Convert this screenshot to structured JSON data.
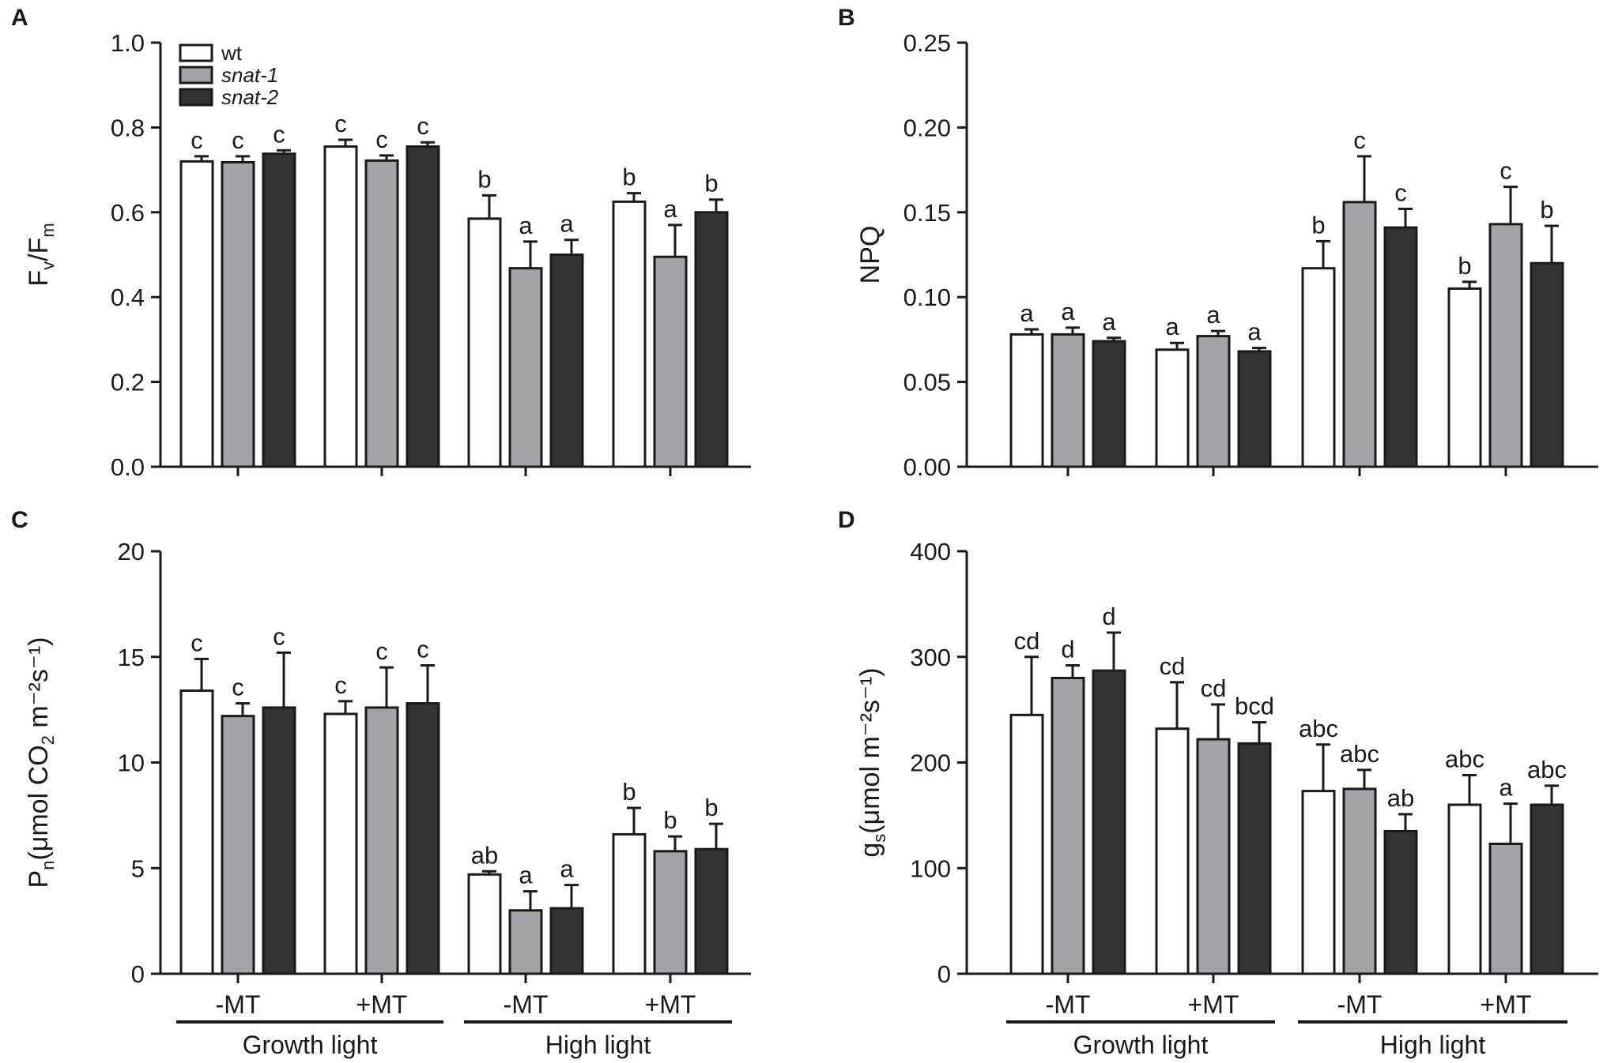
{
  "legend": {
    "series": [
      {
        "name": "wt",
        "italic": false,
        "color": "#ffffff"
      },
      {
        "name": "snat-1",
        "italic": true,
        "color": "#a3a3a6"
      },
      {
        "name": "snat-2",
        "italic": true,
        "color": "#333333"
      }
    ]
  },
  "chart_data": [
    {
      "panel": "A",
      "type": "bar",
      "ylabel": {
        "main": "F",
        "sub1": "v",
        "mid": "/F",
        "sub2": "m",
        "rest": ""
      },
      "ylim": [
        0,
        1.0
      ],
      "yticks": [
        "0.0",
        "0.2",
        "0.4",
        "0.6",
        "0.8",
        "1.0"
      ],
      "ytick_values": [
        0,
        0.2,
        0.4,
        0.6,
        0.8,
        1.0
      ],
      "categories": [
        "-MT",
        "+MT",
        "-MT",
        "+MT"
      ],
      "show_categories": false,
      "groups": [],
      "series": [
        {
          "name": "wt",
          "values": [
            0.72,
            0.755,
            0.585,
            0.625
          ],
          "errors": [
            0.012,
            0.016,
            0.055,
            0.02
          ],
          "labels": [
            "c",
            "c",
            "b",
            "b"
          ]
        },
        {
          "name": "snat-1",
          "values": [
            0.718,
            0.722,
            0.468,
            0.495
          ],
          "errors": [
            0.014,
            0.012,
            0.063,
            0.075
          ],
          "labels": [
            "c",
            "c",
            "a",
            "a"
          ]
        },
        {
          "name": "snat-2",
          "values": [
            0.738,
            0.755,
            0.5,
            0.6
          ],
          "errors": [
            0.008,
            0.01,
            0.035,
            0.03
          ],
          "labels": [
            "c",
            "c",
            "a",
            "b"
          ]
        }
      ]
    },
    {
      "panel": "B",
      "type": "bar",
      "ylabel": {
        "main": "NPQ",
        "sub1": "",
        "mid": "",
        "sub2": "",
        "rest": ""
      },
      "ylim": [
        0,
        0.25
      ],
      "yticks": [
        "0.00",
        "0.05",
        "0.10",
        "0.15",
        "0.20",
        "0.25"
      ],
      "ytick_values": [
        0,
        0.05,
        0.1,
        0.15,
        0.2,
        0.25
      ],
      "categories": [
        "-MT",
        "+MT",
        "-MT",
        "+MT"
      ],
      "show_categories": false,
      "groups": [],
      "series": [
        {
          "name": "wt",
          "values": [
            0.078,
            0.069,
            0.117,
            0.105
          ],
          "errors": [
            0.003,
            0.004,
            0.016,
            0.004
          ],
          "labels": [
            "a",
            "a",
            "b",
            "b"
          ]
        },
        {
          "name": "snat-1",
          "values": [
            0.078,
            0.077,
            0.156,
            0.143
          ],
          "errors": [
            0.004,
            0.003,
            0.027,
            0.022
          ],
          "labels": [
            "a",
            "a",
            "c",
            "c"
          ]
        },
        {
          "name": "snat-2",
          "values": [
            0.074,
            0.068,
            0.141,
            0.12
          ],
          "errors": [
            0.002,
            0.002,
            0.011,
            0.022
          ],
          "labels": [
            "a",
            "a",
            "c",
            "b"
          ]
        }
      ]
    },
    {
      "panel": "C",
      "type": "bar",
      "ylabel": {
        "main": "P",
        "sub1": "n",
        "mid": "(μmol CO",
        "sub2": "2",
        "rest": " m⁻²s⁻¹)"
      },
      "ylim": [
        0,
        20
      ],
      "yticks": [
        "0",
        "5",
        "10",
        "15",
        "20"
      ],
      "ytick_values": [
        0,
        5,
        10,
        15,
        20
      ],
      "categories": [
        "-MT",
        "+MT",
        "-MT",
        "+MT"
      ],
      "show_categories": true,
      "groups": [
        {
          "label": "Growth light",
          "cats": [
            0,
            1
          ]
        },
        {
          "label": "High light",
          "cats": [
            2,
            3
          ]
        }
      ],
      "series": [
        {
          "name": "wt",
          "values": [
            13.4,
            12.3,
            4.7,
            6.6
          ],
          "errors": [
            1.5,
            0.6,
            0.15,
            1.25
          ],
          "labels": [
            "c",
            "c",
            "ab",
            "b"
          ]
        },
        {
          "name": "snat-1",
          "values": [
            12.2,
            12.6,
            3.0,
            5.8
          ],
          "errors": [
            0.6,
            1.9,
            0.9,
            0.7
          ],
          "labels": [
            "c",
            "c",
            "a",
            "b"
          ]
        },
        {
          "name": "snat-2",
          "values": [
            12.6,
            12.8,
            3.1,
            5.9
          ],
          "errors": [
            2.6,
            1.8,
            1.1,
            1.2
          ],
          "labels": [
            "c",
            "c",
            "a",
            "b"
          ]
        }
      ]
    },
    {
      "panel": "D",
      "type": "bar",
      "ylabel": {
        "main": "g",
        "sub1": "s",
        "mid": "(μmol m⁻²s⁻¹)",
        "sub2": "",
        "rest": ""
      },
      "ylim": [
        0,
        400
      ],
      "yticks": [
        "0",
        "100",
        "200",
        "300",
        "400"
      ],
      "ytick_values": [
        0,
        100,
        200,
        300,
        400
      ],
      "categories": [
        "-MT",
        "+MT",
        "-MT",
        "+MT"
      ],
      "show_categories": true,
      "groups": [
        {
          "label": "Growth light",
          "cats": [
            0,
            1
          ]
        },
        {
          "label": "High light",
          "cats": [
            2,
            3
          ]
        }
      ],
      "series": [
        {
          "name": "wt",
          "values": [
            245,
            232,
            173,
            160
          ],
          "errors": [
            55,
            44,
            44,
            28
          ],
          "labels": [
            "cd",
            "cd",
            "abc",
            "abc"
          ]
        },
        {
          "name": "snat-1",
          "values": [
            280,
            222,
            175,
            123
          ],
          "errors": [
            12,
            33,
            18,
            38
          ],
          "labels": [
            "d",
            "cd",
            "abc",
            "a"
          ]
        },
        {
          "name": "snat-2",
          "values": [
            287,
            218,
            135,
            160
          ],
          "errors": [
            36,
            20,
            16,
            18
          ],
          "labels": [
            "d",
            "bcd",
            "ab",
            "abc"
          ]
        }
      ]
    }
  ]
}
